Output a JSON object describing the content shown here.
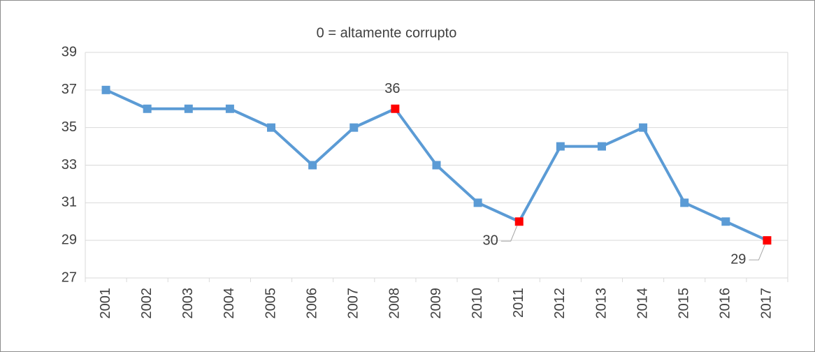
{
  "chart_data": {
    "type": "line",
    "title": "0 = altamente corrupto",
    "categories": [
      "2001",
      "2002",
      "2003",
      "2004",
      "2005",
      "2006",
      "2007",
      "2008",
      "2009",
      "2010",
      "2011",
      "2012",
      "2013",
      "2014",
      "2015",
      "2016",
      "2017"
    ],
    "series": [
      {
        "color": "#5b9bd5",
        "values": [
          37,
          36,
          36,
          36,
          35,
          33,
          35,
          36,
          33,
          31,
          30,
          34,
          34,
          35,
          31,
          30,
          29
        ]
      }
    ],
    "highlight_points": [
      7,
      10,
      16
    ],
    "highlight_color": "#ff0000",
    "ylim": [
      27,
      39
    ],
    "yticks": [
      27,
      29,
      31,
      33,
      35,
      37,
      39
    ],
    "grid": true
  }
}
